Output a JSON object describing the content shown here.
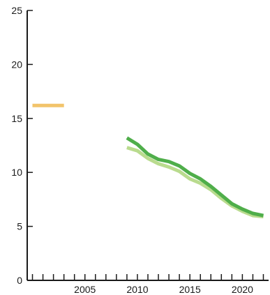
{
  "chart_data": {
    "type": "line",
    "title": "",
    "xlabel": "",
    "ylabel": "",
    "xlim": [
      1999.5,
      2022.5
    ],
    "ylim": [
      0,
      25
    ],
    "x_ticks": [
      2005,
      2010,
      2015,
      2020
    ],
    "x_tick_labels": [
      "2005",
      "2010",
      "2015",
      "2020"
    ],
    "x_minor_ticks": [
      2000,
      2001,
      2002,
      2003,
      2004,
      2005,
      2006,
      2007,
      2008,
      2009,
      2010,
      2011,
      2012,
      2013,
      2014,
      2015,
      2016,
      2017,
      2018,
      2019,
      2020,
      2021,
      2022
    ],
    "y_ticks": [
      0,
      5,
      10,
      15,
      20,
      25
    ],
    "y_tick_labels": [
      "0",
      "5",
      "10",
      "15",
      "20",
      "25"
    ],
    "grid": false,
    "legend": "none",
    "series": [
      {
        "color": "#f2c46b",
        "x": [
          2000,
          2003
        ],
        "y": [
          16.2,
          16.2
        ]
      },
      {
        "color": "#b9db8e",
        "x": [
          2009,
          2010,
          2011,
          2012,
          2013,
          2014,
          2015,
          2016,
          2017,
          2018,
          2019,
          2020,
          2021,
          2022
        ],
        "y": [
          12.3,
          12.0,
          11.3,
          10.8,
          10.5,
          10.1,
          9.4,
          9.0,
          8.4,
          7.6,
          6.9,
          6.4,
          6.0,
          5.9
        ]
      },
      {
        "color": "#4fae4a",
        "x": [
          2009,
          2010,
          2011,
          2012,
          2013,
          2014,
          2015,
          2016,
          2017,
          2018,
          2019,
          2020,
          2021,
          2022
        ],
        "y": [
          13.2,
          12.6,
          11.7,
          11.2,
          11.0,
          10.6,
          9.9,
          9.4,
          8.7,
          7.9,
          7.1,
          6.6,
          6.2,
          6.0
        ]
      }
    ]
  }
}
